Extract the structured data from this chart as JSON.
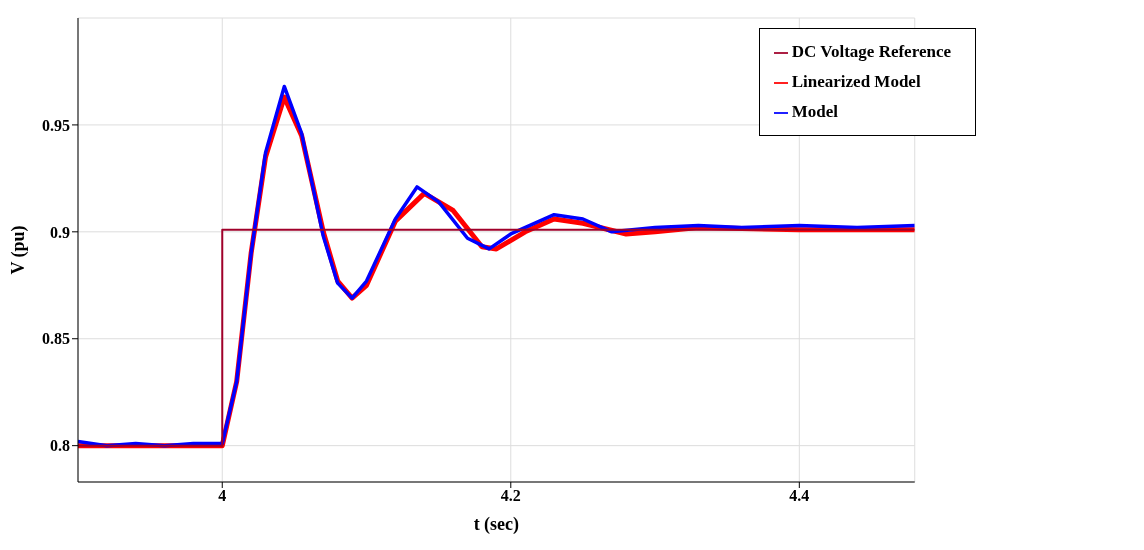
{
  "chart_data": {
    "type": "line",
    "xlabel": "t (sec)",
    "ylabel": "V (pu)",
    "xlim": [
      3.9,
      4.48
    ],
    "ylim": [
      0.783,
      1.0
    ],
    "xticks": [
      4,
      4.2,
      4.4
    ],
    "yticks": [
      0.8,
      0.85,
      0.9,
      0.95
    ],
    "grid": true,
    "legend": "top right",
    "marker": "none",
    "line_style": "solid",
    "series": [
      {
        "name": "Linearized Model",
        "color": "#ff0000",
        "x": [
          3.9,
          4.0,
          4.01,
          4.02,
          4.03,
          4.043,
          4.055,
          4.07,
          4.08,
          4.09,
          4.1,
          4.12,
          4.14,
          4.16,
          4.18,
          4.19,
          4.21,
          4.23,
          4.25,
          4.28,
          4.3,
          4.33,
          4.4,
          4.48
        ],
        "values": [
          0.8,
          0.8,
          0.83,
          0.89,
          0.935,
          0.963,
          0.945,
          0.9,
          0.877,
          0.869,
          0.875,
          0.905,
          0.918,
          0.91,
          0.893,
          0.892,
          0.9,
          0.906,
          0.904,
          0.899,
          0.9,
          0.902,
          0.901,
          0.901
        ]
      },
      {
        "name": "Model",
        "color": "#0000ff",
        "x": [
          3.9,
          3.92,
          3.94,
          3.96,
          3.98,
          4.0,
          4.01,
          4.02,
          4.03,
          4.043,
          4.055,
          4.07,
          4.08,
          4.09,
          4.1,
          4.12,
          4.135,
          4.15,
          4.17,
          4.185,
          4.2,
          4.23,
          4.25,
          4.27,
          4.3,
          4.33,
          4.36,
          4.4,
          4.44,
          4.48
        ],
        "values": [
          0.802,
          0.8,
          0.801,
          0.8,
          0.801,
          0.801,
          0.83,
          0.89,
          0.937,
          0.968,
          0.946,
          0.898,
          0.876,
          0.869,
          0.877,
          0.906,
          0.921,
          0.914,
          0.897,
          0.892,
          0.899,
          0.908,
          0.906,
          0.9,
          0.902,
          0.903,
          0.902,
          0.903,
          0.902,
          0.903
        ]
      },
      {
        "name": "DC Voltage Reference",
        "color": "#a0002a",
        "x": [
          3.9,
          4.0,
          4.0,
          4.48
        ],
        "values": [
          0.8,
          0.8,
          0.901,
          0.901
        ]
      }
    ]
  }
}
